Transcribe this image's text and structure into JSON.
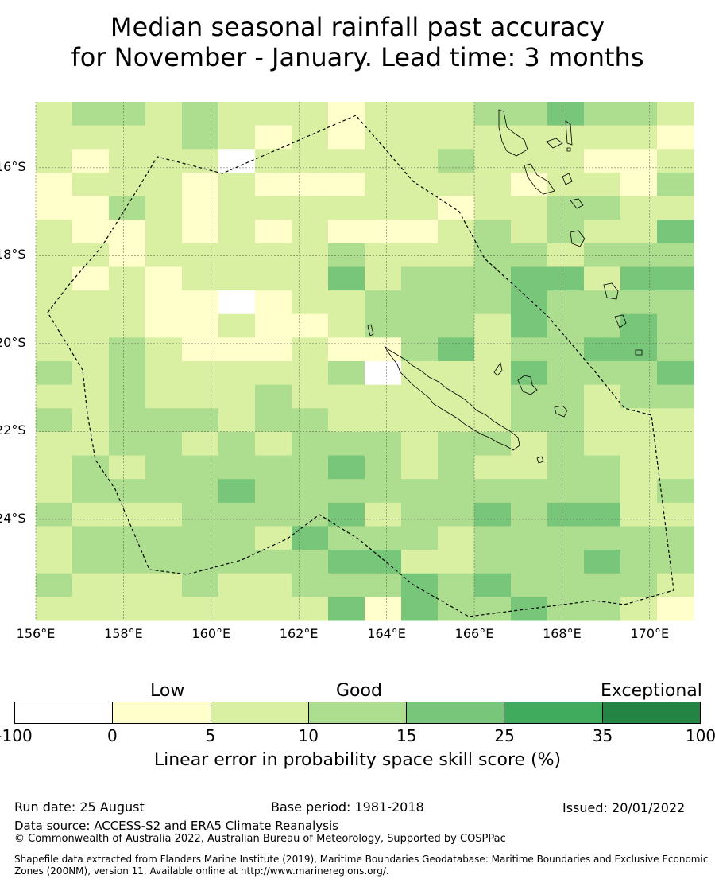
{
  "title": {
    "line1": "Median seasonal rainfall past accuracy",
    "line2": "for November - January. Lead time: 3 months"
  },
  "map": {
    "lat_labels": [
      "16°S",
      "18°S",
      "20°S",
      "22°S",
      "24°S"
    ],
    "lon_labels": [
      "156°E",
      "158°E",
      "160°E",
      "162°E",
      "164°E",
      "166°E",
      "168°E",
      "170°E"
    ],
    "extent": {
      "lon": [
        156,
        171
      ],
      "lat": [
        -14.5,
        -26.3
      ]
    },
    "grid_resolution_deg": 0.833,
    "skill_grid": [
      [
        1,
        2,
        2,
        1,
        2,
        1,
        1,
        1,
        0,
        1,
        1,
        1,
        2,
        2,
        3,
        2,
        2,
        1
      ],
      [
        1,
        1,
        1,
        1,
        2,
        1,
        0,
        1,
        0,
        1,
        1,
        1,
        1,
        1,
        1,
        1,
        1,
        0
      ],
      [
        1,
        0,
        1,
        1,
        1,
        -1,
        1,
        1,
        1,
        1,
        1,
        2,
        1,
        1,
        1,
        0,
        0,
        1
      ],
      [
        0,
        1,
        1,
        1,
        0,
        1,
        0,
        0,
        0,
        1,
        1,
        1,
        1,
        0,
        1,
        1,
        0,
        2
      ],
      [
        0,
        0,
        2,
        1,
        0,
        1,
        1,
        1,
        1,
        1,
        1,
        0,
        1,
        1,
        2,
        2,
        1,
        1
      ],
      [
        1,
        0,
        0,
        1,
        0,
        1,
        0,
        1,
        0,
        0,
        0,
        1,
        2,
        1,
        2,
        1,
        1,
        3
      ],
      [
        1,
        1,
        0,
        1,
        1,
        1,
        1,
        1,
        2,
        1,
        1,
        1,
        2,
        2,
        1,
        2,
        2,
        2
      ],
      [
        1,
        0,
        1,
        0,
        1,
        1,
        1,
        1,
        3,
        1,
        2,
        2,
        2,
        3,
        3,
        1,
        3,
        3
      ],
      [
        1,
        1,
        1,
        0,
        0,
        -1,
        0,
        1,
        1,
        2,
        2,
        2,
        2,
        3,
        2,
        2,
        2,
        2
      ],
      [
        1,
        1,
        1,
        0,
        0,
        1,
        0,
        0,
        1,
        2,
        2,
        2,
        1,
        3,
        2,
        2,
        3,
        2
      ],
      [
        1,
        1,
        2,
        1,
        0,
        0,
        0,
        1,
        0,
        0,
        2,
        3,
        1,
        2,
        2,
        3,
        3,
        2
      ],
      [
        2,
        1,
        2,
        1,
        1,
        1,
        1,
        1,
        2,
        -1,
        1,
        1,
        1,
        3,
        2,
        2,
        2,
        3
      ],
      [
        1,
        1,
        2,
        1,
        1,
        1,
        2,
        1,
        1,
        1,
        1,
        1,
        1,
        2,
        2,
        1,
        2,
        2
      ],
      [
        2,
        1,
        2,
        2,
        2,
        1,
        2,
        2,
        1,
        1,
        1,
        1,
        1,
        2,
        2,
        1,
        1,
        1
      ],
      [
        1,
        1,
        2,
        2,
        1,
        2,
        1,
        2,
        2,
        2,
        1,
        2,
        2,
        1,
        2,
        1,
        1,
        1
      ],
      [
        1,
        2,
        1,
        2,
        2,
        2,
        2,
        2,
        3,
        2,
        1,
        2,
        1,
        1,
        2,
        2,
        1,
        1
      ],
      [
        1,
        2,
        2,
        2,
        2,
        3,
        2,
        2,
        2,
        2,
        2,
        2,
        2,
        2,
        2,
        2,
        1,
        2
      ],
      [
        2,
        1,
        1,
        1,
        2,
        2,
        2,
        2,
        3,
        1,
        2,
        2,
        3,
        2,
        3,
        3,
        1,
        1
      ],
      [
        1,
        2,
        2,
        2,
        2,
        2,
        1,
        3,
        2,
        2,
        2,
        1,
        2,
        2,
        2,
        2,
        2,
        2
      ],
      [
        1,
        2,
        2,
        2,
        2,
        2,
        2,
        2,
        3,
        3,
        1,
        1,
        2,
        2,
        2,
        3,
        2,
        2
      ],
      [
        2,
        1,
        1,
        1,
        2,
        1,
        1,
        2,
        2,
        2,
        3,
        2,
        3,
        2,
        2,
        2,
        2,
        1
      ],
      [
        1,
        1,
        1,
        1,
        1,
        1,
        1,
        1,
        3,
        0,
        3,
        2,
        2,
        3,
        2,
        2,
        1,
        0
      ]
    ]
  },
  "colorbar": {
    "category_labels": {
      "low": "Low",
      "good": "Good",
      "exceptional": "Exceptional"
    },
    "ticks": [
      "-100",
      "0",
      "5",
      "10",
      "15",
      "25",
      "35",
      "100"
    ],
    "colors": [
      "#ffffff",
      "#ffffcc",
      "#d9f0a3",
      "#addd8e",
      "#78c679",
      "#41ab5d",
      "#238443"
    ],
    "label": "Linear error in probability space skill score (%)"
  },
  "footer": {
    "run_date": "Run date: 25 August",
    "base_period": "Base period: 1981-2018",
    "issued": "Issued: 20/01/2022",
    "data_source": "Data source: ACCESS-S2 and ERA5 Climate Reanalysis",
    "copyright": "© Commonwealth of Australia 2022, Australian Bureau of Meteorology, Supported by COSPPac",
    "shapefile_note": "Shapefile data extracted from Flanders Marine Institute (2019), Maritime Boundaries Geodatabase: Maritime Boundaries and Exclusive Economic Zones (200NM), version 11. Available online at http://www.marineregions.org/."
  }
}
